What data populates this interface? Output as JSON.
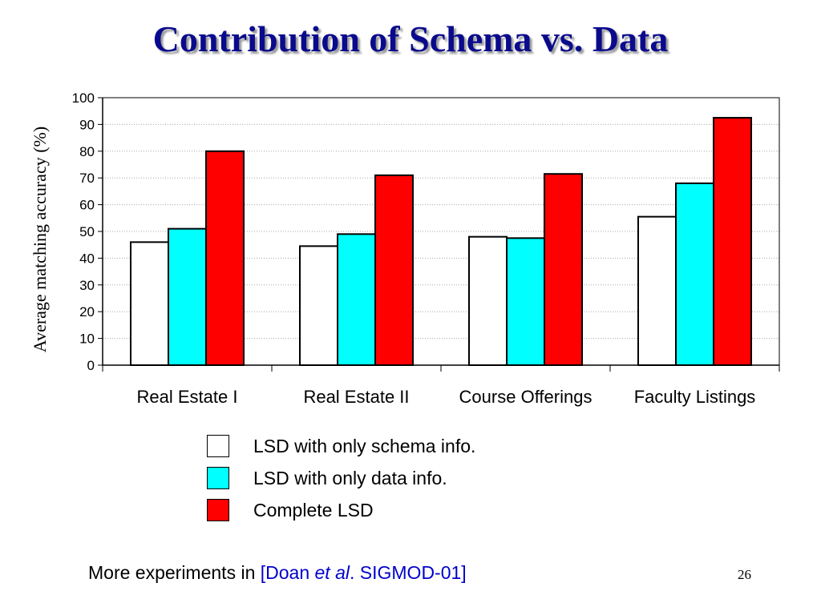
{
  "title": "Contribution of Schema vs. Data",
  "chart_data": {
    "type": "bar",
    "ylabel": "Average matching accuracy (%)",
    "xlabel": "",
    "ylim": [
      0,
      100
    ],
    "yticks": [
      0,
      10,
      20,
      30,
      40,
      50,
      60,
      70,
      80,
      90,
      100
    ],
    "grid": true,
    "legend_position": "bottom",
    "categories": [
      "Real Estate I",
      "Real Estate II",
      "Course Offerings",
      "Faculty Listings"
    ],
    "series": [
      {
        "name": "LSD with only schema info.",
        "color": "#ffffff",
        "values": [
          46,
          44.5,
          48,
          55.5
        ]
      },
      {
        "name": "LSD with only data info.",
        "color": "#00ffff",
        "values": [
          51,
          49,
          47.5,
          68
        ]
      },
      {
        "name": "Complete LSD",
        "color": "#ff0000",
        "values": [
          80,
          71,
          71.5,
          92.5
        ]
      }
    ]
  },
  "footnote": {
    "prefix": "More experiments in ",
    "cite_open": "[Doan ",
    "cite_italic": "et al",
    "cite_rest": ". SIGMOD-01]"
  },
  "slide_number": "26"
}
